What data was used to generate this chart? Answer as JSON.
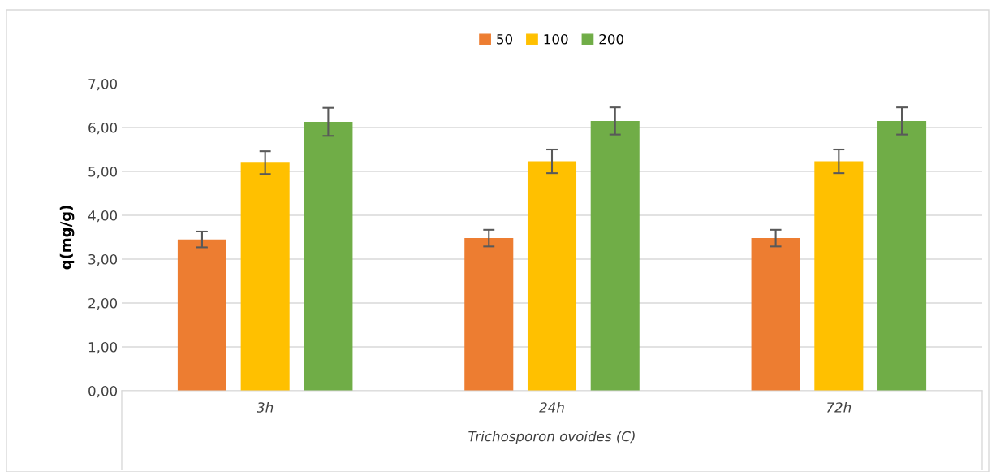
{
  "chart_data": {
    "type": "bar",
    "xlabel": "Trichosporon ovoides (C)",
    "ylabel": "q(mg/g)",
    "categories": [
      "3h",
      "24h",
      "72h"
    ],
    "series": [
      {
        "name": "50",
        "color": "#ed7d31",
        "values": [
          3.45,
          3.48,
          3.48
        ],
        "errors": [
          0.18,
          0.19,
          0.19
        ]
      },
      {
        "name": "100",
        "color": "#ffc000",
        "values": [
          5.2,
          5.23,
          5.23
        ],
        "errors": [
          0.26,
          0.27,
          0.27
        ]
      },
      {
        "name": "200",
        "color": "#70ad47",
        "values": [
          6.13,
          6.15,
          6.15
        ],
        "errors": [
          0.32,
          0.31,
          0.31
        ]
      }
    ],
    "ylim": [
      0,
      7
    ],
    "yticks": [
      {
        "value": 0,
        "label": "0,00"
      },
      {
        "value": 1,
        "label": "1,00"
      },
      {
        "value": 2,
        "label": "2,00"
      },
      {
        "value": 3,
        "label": "3,00"
      },
      {
        "value": 4,
        "label": "4,00"
      },
      {
        "value": 5,
        "label": "5,00"
      },
      {
        "value": 6,
        "label": "6,00"
      },
      {
        "value": 7,
        "label": "7,00"
      }
    ],
    "grid": "y",
    "legend": "top"
  }
}
